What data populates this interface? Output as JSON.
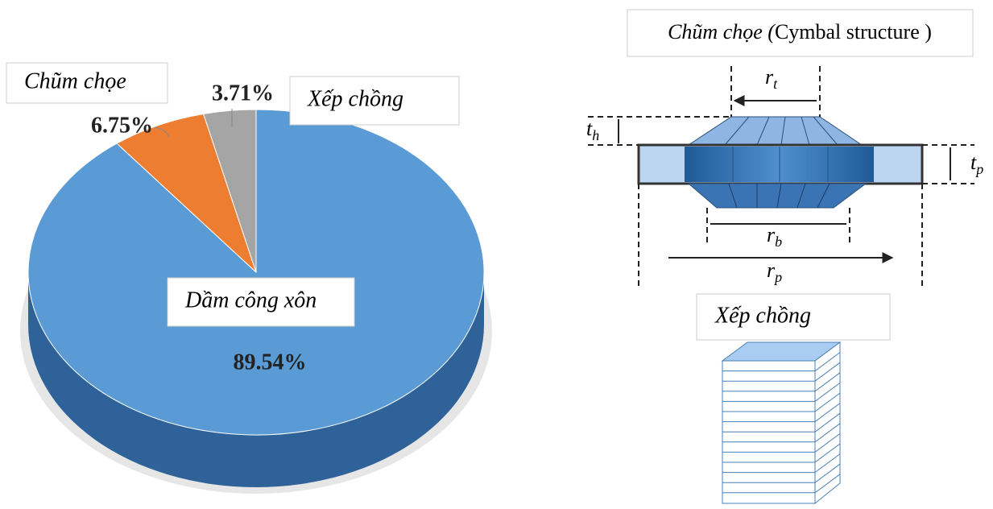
{
  "chart_data": {
    "type": "pie",
    "categories": [
      "Dầm công xôn",
      "Chũm chọe",
      "Xếp chồng"
    ],
    "values": [
      89.54,
      6.75,
      3.71
    ],
    "value_labels": [
      "89.54%",
      "6.75%",
      "3.71%"
    ],
    "colors": [
      "#5b9bd5",
      "#ed7d31",
      "#a5a5a5"
    ]
  },
  "diagram": {
    "title_italic": "Chũm chọe (",
    "title_rest": "Cymbal structure )",
    "dims": [
      {
        "symbol": "r",
        "sub": "t"
      },
      {
        "symbol": "t",
        "sub": "h"
      },
      {
        "symbol": "t",
        "sub": "p"
      },
      {
        "symbol": "r",
        "sub": "b"
      },
      {
        "symbol": "r",
        "sub": "p"
      }
    ],
    "stack_label": "Xếp chồng"
  }
}
